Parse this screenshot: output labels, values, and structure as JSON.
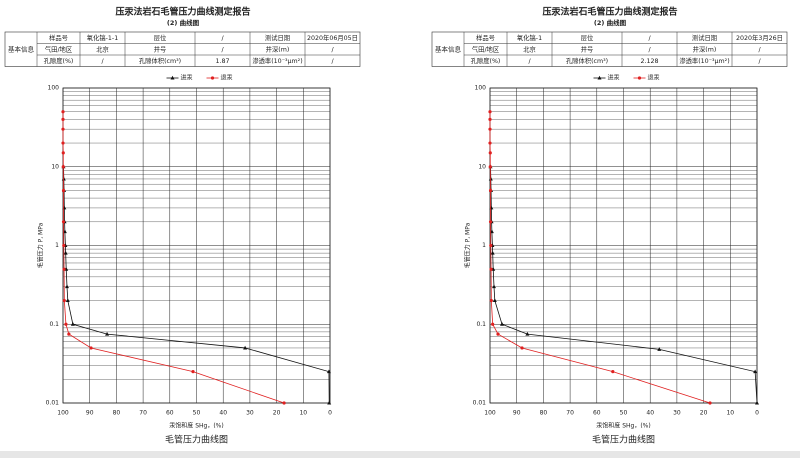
{
  "reports": [
    {
      "title": "压汞法岩石毛管压力曲线测定报告",
      "subtitle": "(2) 曲线图",
      "table": {
        "side_label": "基本信息",
        "rows": [
          [
            "样品号",
            "氧化镐-1-1",
            "层位",
            "/",
            "测试日期",
            "2020年06月05日"
          ],
          [
            "气田/地区",
            "北京",
            "井号",
            "/",
            "井深(m)",
            "/"
          ],
          [
            "孔隙度(%)",
            "/",
            "孔隙体积(cm³)",
            "1.87",
            "渗透率(10⁻³μm²)",
            "/"
          ]
        ]
      }
    },
    {
      "title": "压汞法岩石毛管压力曲线测定报告",
      "subtitle": "(2) 曲线图",
      "table": {
        "side_label": "基本信息",
        "rows": [
          [
            "样品号",
            "氧化镐-1",
            "层位",
            "/",
            "测试日期",
            "2020年3月26日"
          ],
          [
            "气田/地区",
            "北京",
            "井号",
            "/",
            "井深(m)",
            "/"
          ],
          [
            "孔隙度(%)",
            "/",
            "孔隙体积(cm³)",
            "2.128",
            "渗透率(10⁻³μm²)",
            "/"
          ]
        ]
      }
    }
  ],
  "chart_data": [
    {
      "type": "line",
      "caption": "毛管压力曲线图",
      "x_label": "汞饱和度 SHg，(%)",
      "y_label": "毛管压力 P, MPa",
      "log_y": true,
      "grid": true,
      "xlim": [
        100,
        0
      ],
      "xticks": [
        100,
        90,
        80,
        70,
        60,
        50,
        40,
        30,
        20,
        10,
        0
      ],
      "ylim": [
        0.01,
        100
      ],
      "yticks": [
        100,
        10,
        1,
        0.1,
        0.01
      ],
      "series": [
        {
          "name": "进汞",
          "color": "#111111",
          "marker": "triangle",
          "x": [
            0.3,
            0.4,
            31.8,
            83.5,
            96.3,
            98.2,
            98.5,
            98.8,
            99,
            99.1,
            99.3,
            99.4,
            99.5,
            99.6,
            99.7,
            99.8
          ],
          "values": [
            0.01,
            0.025,
            0.05,
            0.075,
            0.1,
            0.2,
            0.3,
            0.5,
            0.8,
            1,
            1.5,
            2,
            3,
            5,
            7,
            10
          ]
        },
        {
          "name": "退汞",
          "color": "#e02020",
          "marker": "circle",
          "x": [
            17.2,
            51.3,
            89.5,
            97.8,
            98.9,
            99.5,
            99.6,
            99.7,
            99.8,
            99.8,
            99.9,
            99.9,
            100,
            100,
            100,
            100
          ],
          "values": [
            0.01,
            0.025,
            0.05,
            0.075,
            0.1,
            0.2,
            0.5,
            1,
            2,
            5,
            10,
            15,
            20,
            30,
            40,
            50
          ]
        }
      ]
    },
    {
      "type": "line",
      "caption": "毛管压力曲线图",
      "x_label": "汞饱和度 SHg，(%)",
      "y_label": "毛管压力 P, MPa",
      "log_y": true,
      "grid": true,
      "xlim": [
        100,
        0
      ],
      "xticks": [
        100,
        90,
        80,
        70,
        60,
        50,
        40,
        30,
        20,
        10,
        0
      ],
      "ylim": [
        0.01,
        100
      ],
      "yticks": [
        100,
        10,
        1,
        0.1,
        0.01
      ],
      "series": [
        {
          "name": "进汞",
          "color": "#111111",
          "marker": "triangle",
          "x": [
            0,
            0.7,
            36.6,
            86,
            95.5,
            98.2,
            98.5,
            98.8,
            99,
            99.1,
            99.3,
            99.4,
            99.5,
            99.6,
            99.7,
            99.8
          ],
          "values": [
            0.01,
            0.025,
            0.048,
            0.075,
            0.1,
            0.2,
            0.3,
            0.5,
            0.8,
            1,
            1.5,
            2,
            3,
            5,
            7,
            10
          ]
        },
        {
          "name": "退汞",
          "color": "#e02020",
          "marker": "circle",
          "x": [
            17.6,
            54,
            88,
            97,
            99,
            99.5,
            99.6,
            99.7,
            99.8,
            99.8,
            99.9,
            99.9,
            100,
            100,
            100,
            100
          ],
          "values": [
            0.01,
            0.025,
            0.05,
            0.075,
            0.1,
            0.2,
            0.5,
            1,
            2,
            5,
            10,
            15,
            20,
            30,
            40,
            50
          ]
        }
      ]
    }
  ]
}
